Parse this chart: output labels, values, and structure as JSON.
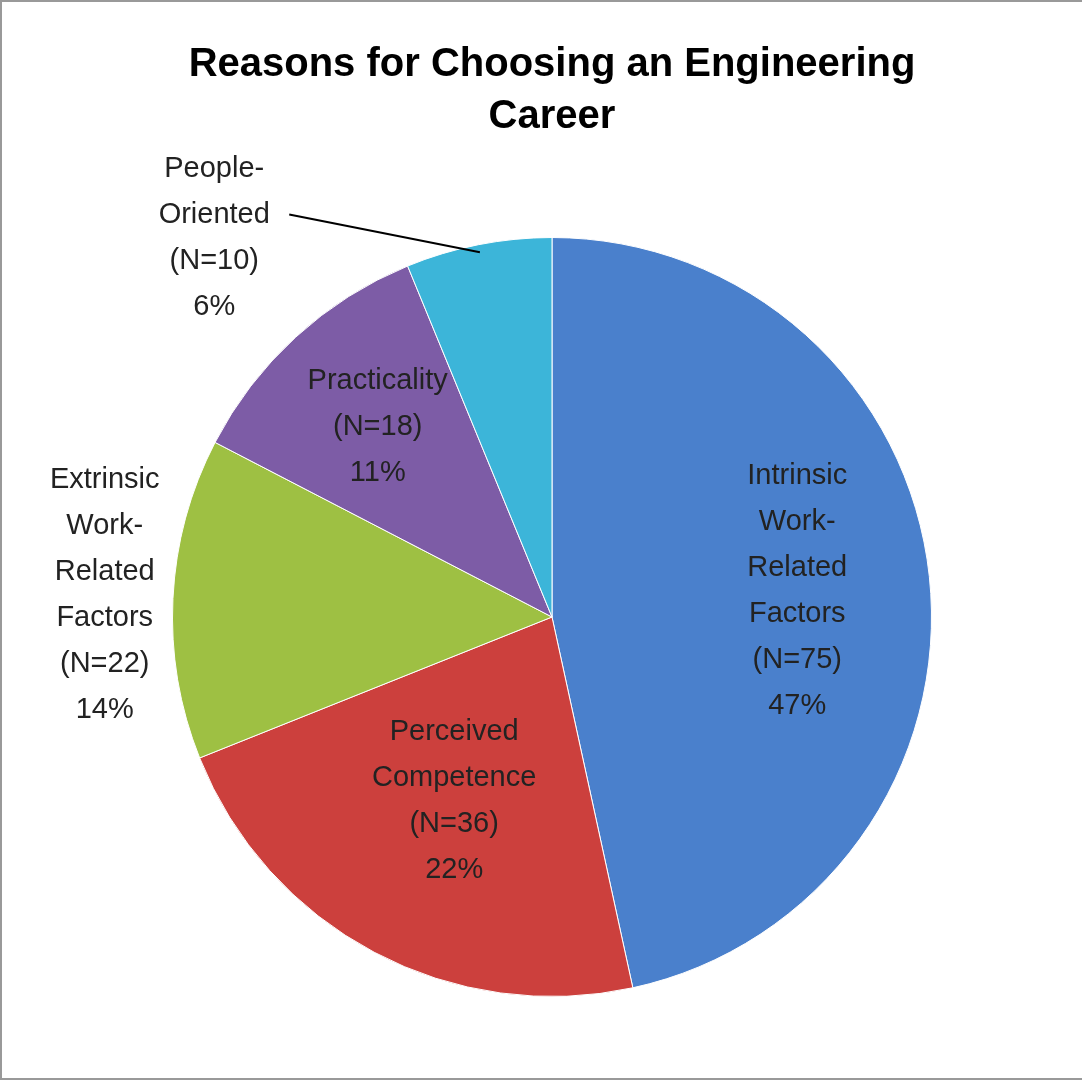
{
  "chart_data": {
    "type": "pie",
    "title": "Reasons for Choosing an Engineering Career",
    "categories": [
      "Intrinsic Work-Related Factors",
      "Perceived Competence",
      "Extrinsic Work-Related Factors",
      "Practicality",
      "People-Oriented"
    ],
    "values": [
      75,
      36,
      22,
      18,
      10
    ],
    "value_labels": [
      "(N=75) 47%",
      "(N=36) 22%",
      "(N=22) 14%",
      "(N=18) 11%",
      "(N=10) 6%"
    ],
    "colors": [
      "#4a80cc",
      "#cc403d",
      "#9ec043",
      "#7d5ca6",
      "#3cb5d9"
    ]
  }
}
